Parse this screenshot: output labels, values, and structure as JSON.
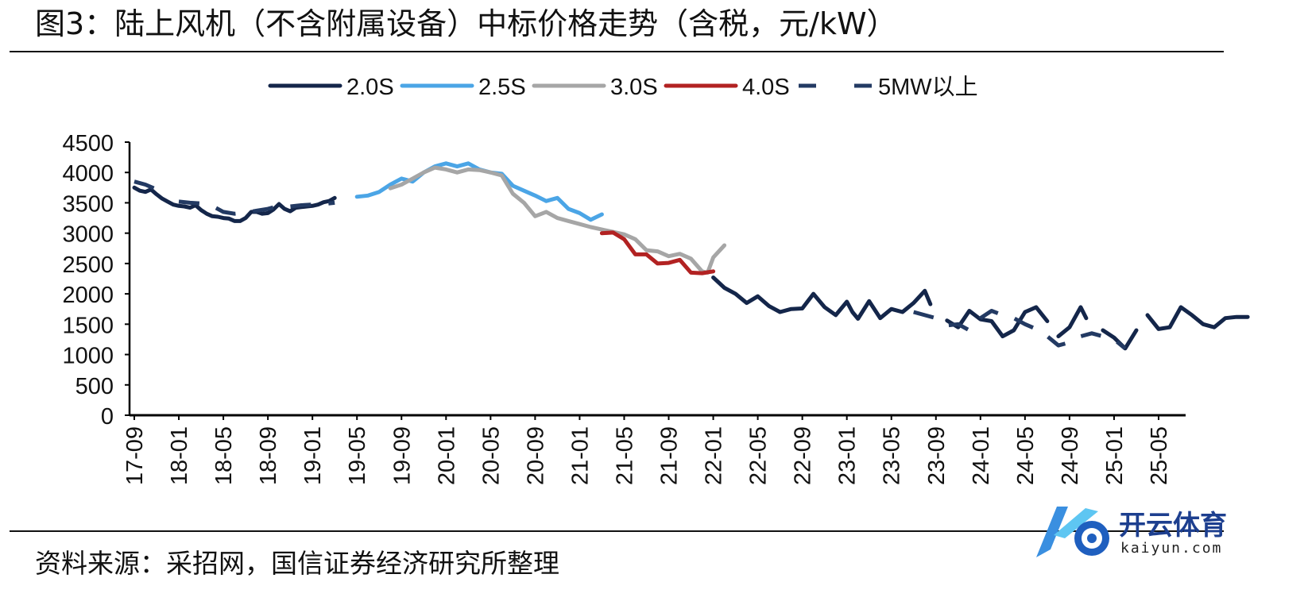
{
  "title": "图3：陆上风机（不含附属设备）中标价格走势（含税，元/kW）",
  "source": "资料来源：采招网，国信证券经济研究所整理",
  "watermark": {
    "cn": "开云体育",
    "en": "kaiyun.com"
  },
  "chart_data": {
    "type": "line",
    "title": "陆上风机（不含附属设备）中标价格走势（含税，元/kW）",
    "xlabel": "",
    "ylabel": "",
    "ylim": [
      0,
      4500
    ],
    "yticks": [
      0,
      500,
      1000,
      1500,
      2000,
      2500,
      3000,
      3500,
      4000,
      4500
    ],
    "xticks": [
      "17-09",
      "18-01",
      "18-05",
      "18-09",
      "19-01",
      "19-05",
      "19-09",
      "20-01",
      "20-05",
      "20-09",
      "21-01",
      "21-05",
      "21-09",
      "22-01",
      "22-05",
      "22-09",
      "23-01",
      "23-05",
      "23-09",
      "24-01",
      "24-05",
      "24-09",
      "25-01",
      "25-05"
    ],
    "x_start": "17-09",
    "x_end": "25-07",
    "legend_position": "top",
    "series": [
      {
        "name": "2.0S",
        "color": "#14264a",
        "dash": false,
        "segments": [
          [
            [
              0,
              3750
            ],
            [
              0.5,
              3700
            ],
            [
              1,
              3680
            ],
            [
              1.5,
              3720
            ],
            [
              2,
              3640
            ],
            [
              2.5,
              3570
            ],
            [
              3,
              3520
            ],
            [
              3.5,
              3470
            ],
            [
              4,
              3450
            ],
            [
              4.5,
              3440
            ],
            [
              5,
              3420
            ],
            [
              5.5,
              3460
            ],
            [
              6,
              3380
            ],
            [
              6.5,
              3320
            ],
            [
              7,
              3280
            ],
            [
              7.5,
              3270
            ],
            [
              8,
              3250
            ],
            [
              8.5,
              3240
            ],
            [
              9,
              3200
            ],
            [
              9.5,
              3200
            ],
            [
              10,
              3250
            ],
            [
              10.5,
              3350
            ],
            [
              11,
              3350
            ],
            [
              11.5,
              3320
            ],
            [
              12,
              3330
            ],
            [
              12.5,
              3390
            ],
            [
              13,
              3480
            ],
            [
              13.5,
              3400
            ],
            [
              14,
              3360
            ],
            [
              14.5,
              3420
            ],
            [
              15,
              3430
            ],
            [
              15.5,
              3440
            ],
            [
              16,
              3450
            ],
            [
              16.5,
              3470
            ],
            [
              17,
              3510
            ],
            [
              17.5,
              3530
            ],
            [
              18,
              3580
            ]
          ],
          [
            [
              52,
              2270
            ],
            [
              53,
              2100
            ],
            [
              54,
              2000
            ],
            [
              55,
              1850
            ],
            [
              56,
              1960
            ],
            [
              57,
              1800
            ],
            [
              58,
              1700
            ],
            [
              59,
              1750
            ],
            [
              60,
              1760
            ],
            [
              61,
              2000
            ],
            [
              62,
              1780
            ],
            [
              63,
              1650
            ],
            [
              64,
              1870
            ],
            [
              64.5,
              1700
            ],
            [
              65,
              1590
            ],
            [
              66,
              1880
            ],
            [
              67,
              1600
            ],
            [
              68,
              1750
            ],
            [
              69,
              1700
            ],
            [
              70,
              1850
            ],
            [
              71,
              2050
            ],
            [
              71.5,
              1830
            ]
          ],
          [
            [
              73,
              1560
            ],
            [
              74,
              1450
            ],
            [
              75,
              1720
            ],
            [
              76,
              1580
            ],
            [
              77,
              1550
            ],
            [
              78,
              1300
            ],
            [
              79,
              1400
            ],
            [
              80,
              1700
            ],
            [
              81,
              1780
            ],
            [
              82,
              1550
            ]
          ],
          [
            [
              83,
              1300
            ],
            [
              84,
              1450
            ],
            [
              85,
              1780
            ],
            [
              85.5,
              1600
            ]
          ],
          [
            [
              87,
              1400
            ],
            [
              88,
              1280
            ],
            [
              89,
              1100
            ],
            [
              90,
              1400
            ]
          ],
          [
            [
              91,
              1650
            ],
            [
              92,
              1420
            ],
            [
              93,
              1450
            ],
            [
              94,
              1780
            ],
            [
              95,
              1650
            ],
            [
              96,
              1500
            ],
            [
              97,
              1450
            ],
            [
              98,
              1600
            ],
            [
              99,
              1620
            ],
            [
              100,
              1620
            ]
          ]
        ]
      },
      {
        "name": "2.5S",
        "color": "#4ba5e6",
        "dash": false,
        "segments": [
          [
            [
              20,
              3600
            ],
            [
              21,
              3620
            ],
            [
              22,
              3680
            ],
            [
              23,
              3800
            ],
            [
              24,
              3900
            ],
            [
              25,
              3850
            ],
            [
              26,
              4000
            ],
            [
              27,
              4100
            ],
            [
              28,
              4150
            ],
            [
              29,
              4100
            ],
            [
              30,
              4150
            ],
            [
              31,
              4050
            ],
            [
              32,
              4000
            ],
            [
              33,
              3980
            ],
            [
              34,
              3780
            ],
            [
              35,
              3700
            ],
            [
              36,
              3620
            ],
            [
              37,
              3530
            ],
            [
              38,
              3580
            ],
            [
              39,
              3400
            ],
            [
              40,
              3330
            ],
            [
              41,
              3220
            ],
            [
              42,
              3310
            ]
          ]
        ]
      },
      {
        "name": "3.0S",
        "color": "#a6a6a6",
        "dash": false,
        "segments": [
          [
            [
              23,
              3740
            ],
            [
              24,
              3800
            ],
            [
              25,
              3900
            ],
            [
              26,
              4000
            ],
            [
              27,
              4080
            ],
            [
              28,
              4050
            ],
            [
              29,
              4000
            ],
            [
              30,
              4050
            ],
            [
              31,
              4040
            ],
            [
              32,
              4000
            ],
            [
              33,
              3950
            ],
            [
              34,
              3650
            ],
            [
              35,
              3500
            ],
            [
              36,
              3280
            ],
            [
              37,
              3350
            ],
            [
              38,
              3250
            ],
            [
              39,
              3200
            ],
            [
              40,
              3150
            ],
            [
              41,
              3100
            ],
            [
              42,
              3060
            ],
            [
              43,
              3020
            ],
            [
              44,
              2980
            ],
            [
              45,
              2900
            ],
            [
              46,
              2720
            ],
            [
              47,
              2700
            ],
            [
              48,
              2620
            ],
            [
              49,
              2660
            ],
            [
              50,
              2580
            ],
            [
              51,
              2370
            ],
            [
              51.5,
              2350
            ],
            [
              52,
              2600
            ],
            [
              53,
              2800
            ]
          ]
        ]
      },
      {
        "name": "4.0S",
        "color": "#b22222",
        "dash": false,
        "segments": [
          [
            [
              42,
              3000
            ],
            [
              43,
              3010
            ],
            [
              44,
              2900
            ],
            [
              45,
              2650
            ],
            [
              46,
              2650
            ],
            [
              47,
              2500
            ],
            [
              48,
              2510
            ],
            [
              49,
              2560
            ],
            [
              50,
              2350
            ],
            [
              51,
              2340
            ],
            [
              52,
              2370
            ]
          ]
        ]
      },
      {
        "name": "5MW以上",
        "color": "#233a63",
        "dash": true,
        "segments": [
          [
            [
              0,
              3850
            ],
            [
              1,
              3800
            ],
            [
              2,
              3720
            ]
          ],
          [
            [
              4,
              3520
            ],
            [
              5,
              3500
            ],
            [
              6,
              3490
            ],
            [
              7,
              3450
            ],
            [
              8,
              3350
            ],
            [
              9,
              3320
            ],
            [
              10,
              3340
            ],
            [
              11,
              3370
            ],
            [
              12,
              3400
            ],
            [
              13,
              3450
            ],
            [
              14,
              3440
            ],
            [
              15,
              3460
            ],
            [
              16,
              3470
            ],
            [
              17,
              3480
            ],
            [
              18,
              3500
            ]
          ],
          [
            [
              70,
              1700
            ],
            [
              71,
              1650
            ],
            [
              72,
              1600
            ],
            [
              73,
              1480
            ],
            [
              74,
              1500
            ],
            [
              75,
              1400
            ],
            [
              76,
              1600
            ],
            [
              77,
              1720
            ],
            [
              78,
              1650
            ],
            [
              79,
              1600
            ],
            [
              80,
              1500
            ],
            [
              81,
              1420
            ],
            [
              82,
              1300
            ],
            [
              83,
              1150
            ],
            [
              84,
              1200
            ],
            [
              85,
              1300
            ],
            [
              86,
              1350
            ],
            [
              87,
              1300
            ],
            [
              88,
              1250
            ],
            [
              89,
              1100
            ]
          ]
        ]
      }
    ]
  }
}
